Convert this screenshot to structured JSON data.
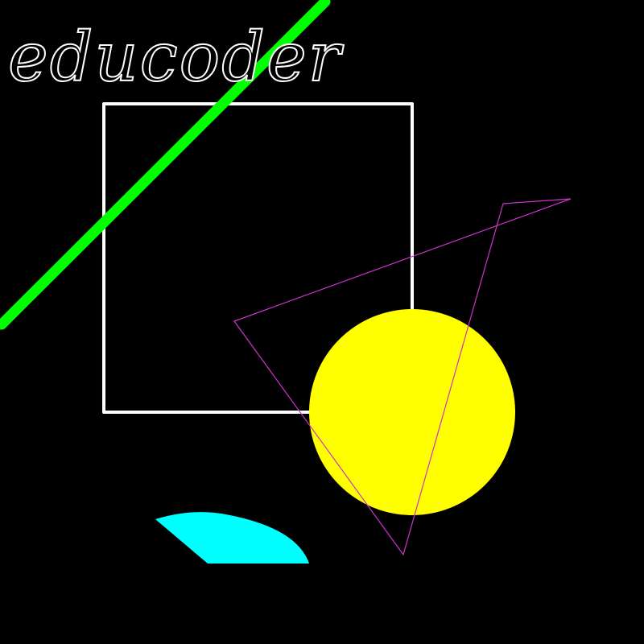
{
  "canvas": {
    "background_color": "#000000"
  },
  "logo": {
    "text": "educoder",
    "fill_color": "#000000",
    "stroke_color": "#ffffff"
  },
  "shapes": {
    "diagonal_line": {
      "color": "#00ff00"
    },
    "rectangle": {
      "color": "#ffffff"
    },
    "circle": {
      "color": "#ffff00"
    },
    "triangle": {
      "color": "#cc33cc"
    },
    "ellipse_segment": {
      "color": "#00ffff"
    }
  }
}
